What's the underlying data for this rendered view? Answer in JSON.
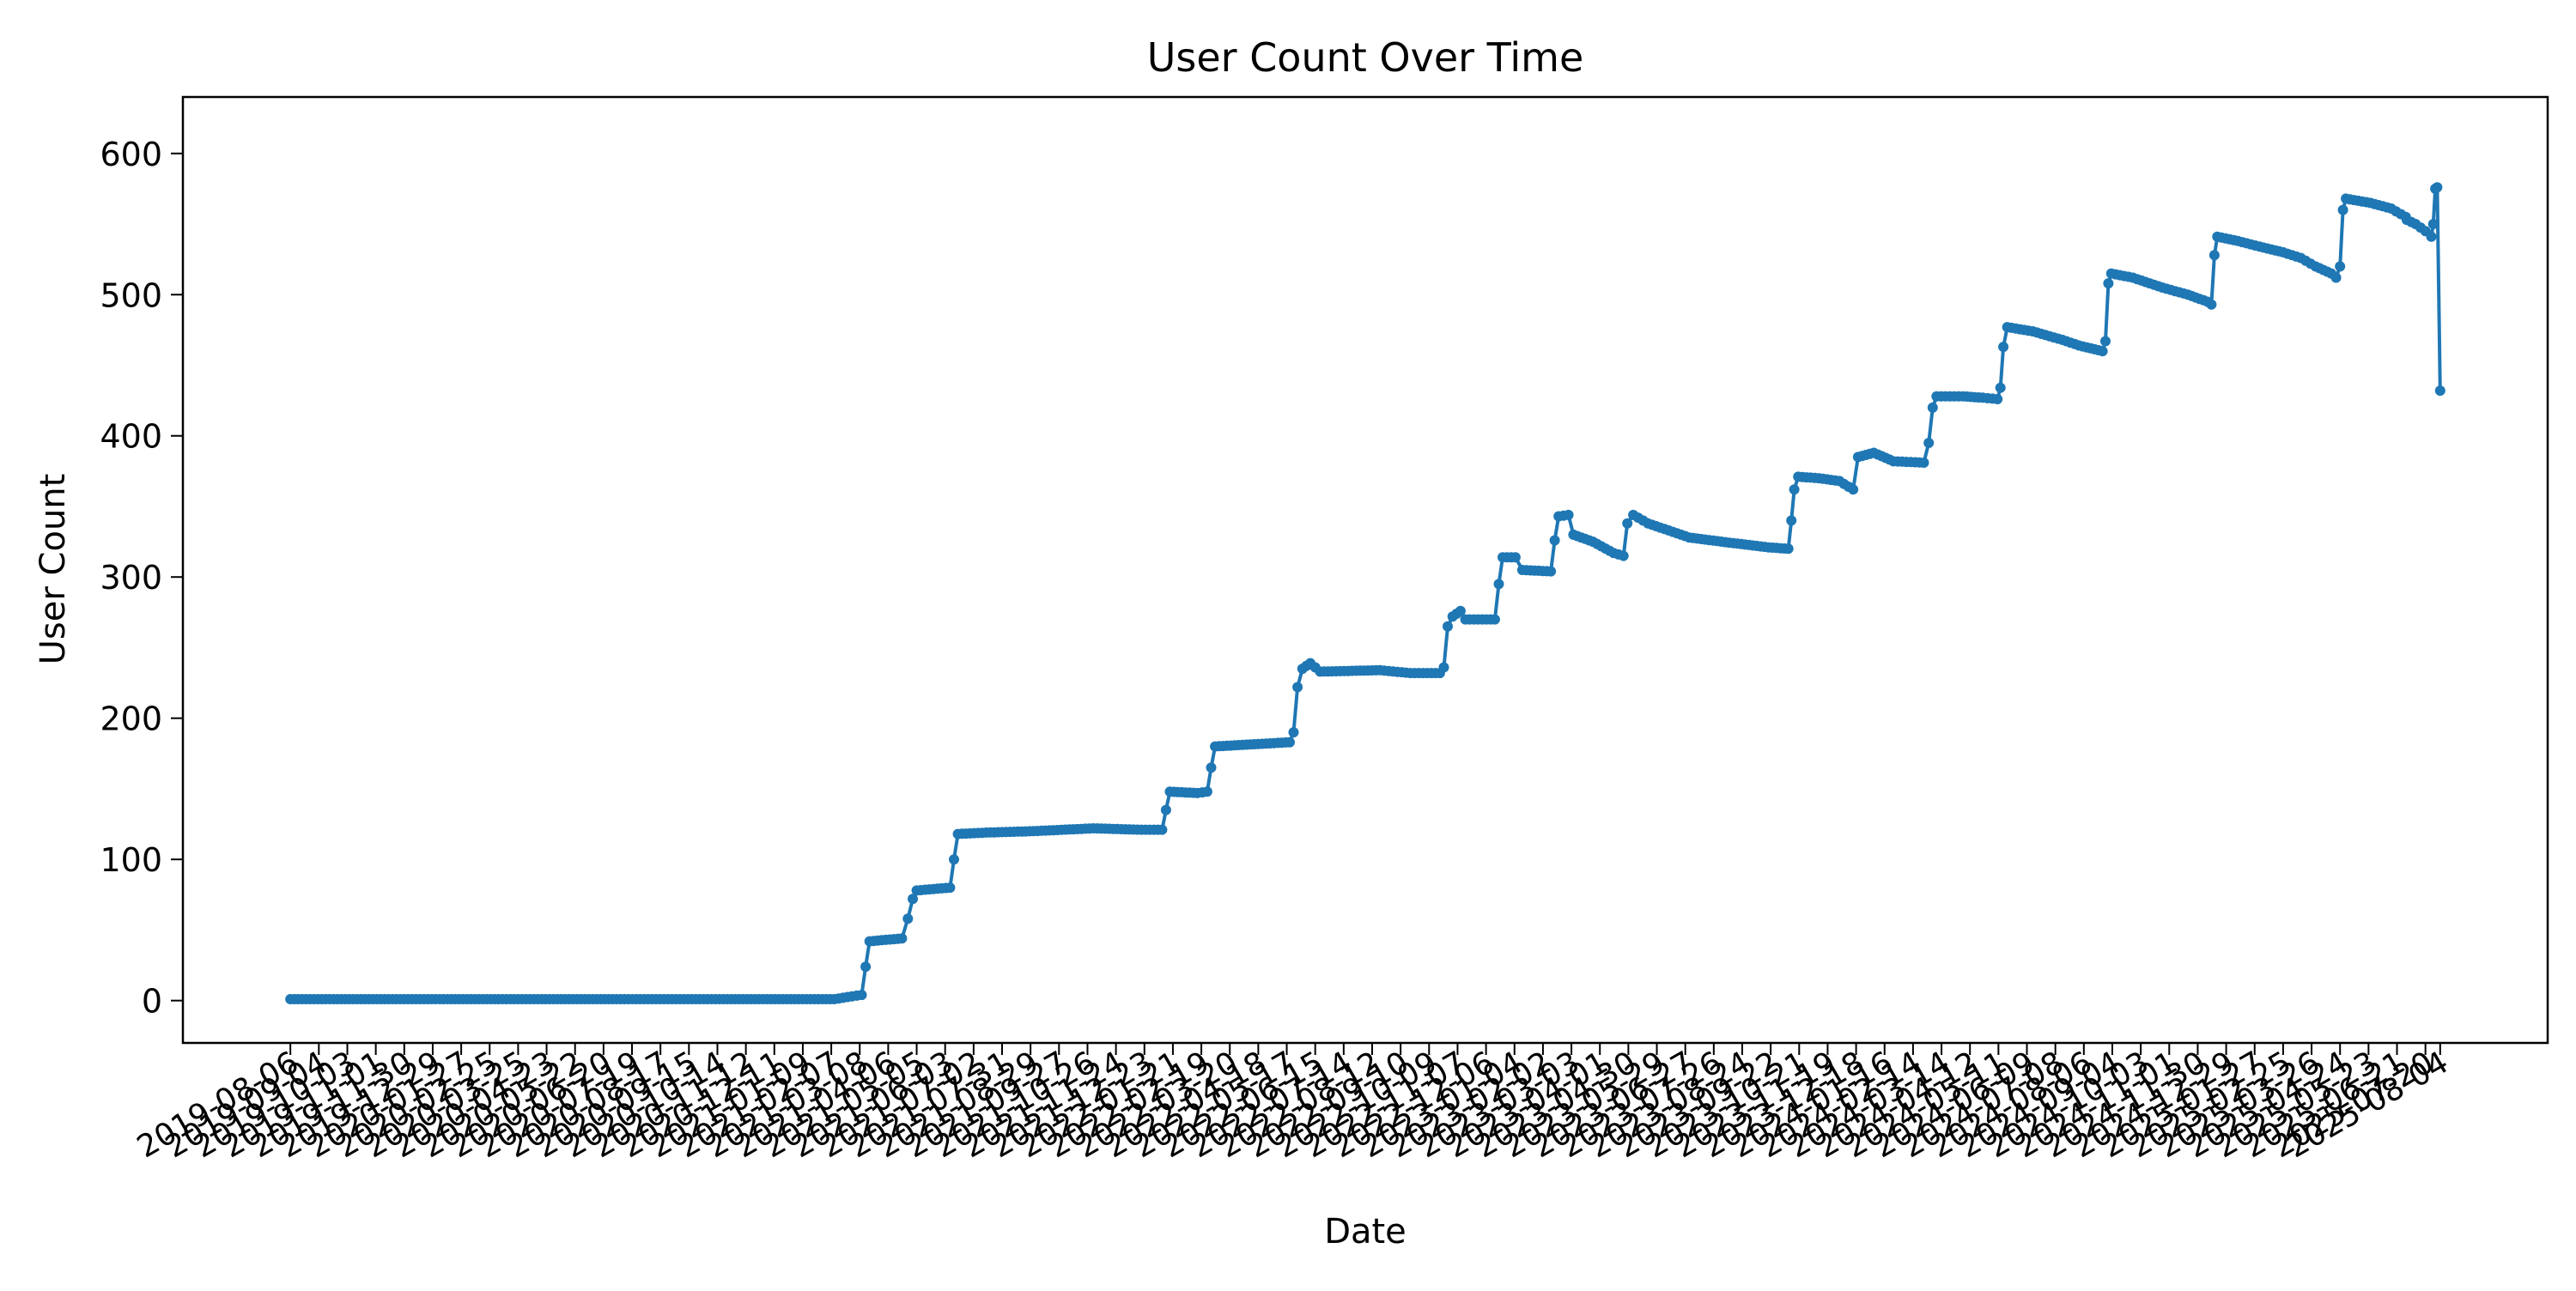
{
  "chart_data": {
    "type": "line",
    "title": "User Count Over Time",
    "xlabel": "Date",
    "ylabel": "User Count",
    "ylim": [
      -30,
      640
    ],
    "y_ticks": [
      0,
      100,
      200,
      300,
      400,
      500,
      600
    ],
    "x_tick_labels_note": "Dense overlapping date tick labels; first and last legible",
    "x_range": [
      "2019-08-06",
      "2025-08-04"
    ],
    "x_tick_labels": [
      "2019-08-06",
      "2019-09-04",
      "2019-10-03",
      "2019-11-01",
      "2019-11-30",
      "2019-12-29",
      "2020-01-27",
      "2020-02-25",
      "2020-03-25",
      "2020-04-23",
      "2020-05-22",
      "2020-06-20",
      "2020-07-19",
      "2020-08-17",
      "2020-09-15",
      "2020-10-14",
      "2020-11-12",
      "2020-12-11",
      "2021-01-09",
      "2021-02-07",
      "2021-03-08",
      "2021-04-06",
      "2021-05-05",
      "2021-06-03",
      "2021-07-02",
      "2021-07-31",
      "2021-08-29",
      "2021-09-27",
      "2021-10-26",
      "2021-11-24",
      "2021-12-23",
      "2022-01-21",
      "2022-02-19",
      "2022-03-20",
      "2022-04-18",
      "2022-05-17",
      "2022-06-15",
      "2022-07-14",
      "2022-08-12",
      "2022-09-10",
      "2022-10-09",
      "2022-11-07",
      "2022-12-06",
      "2023-01-04",
      "2023-02-02",
      "2023-03-03",
      "2023-04-01",
      "2023-04-30",
      "2023-05-29",
      "2023-06-27",
      "2023-07-26",
      "2023-08-24",
      "2023-09-22",
      "2023-10-21",
      "2023-11-19",
      "2023-12-18",
      "2024-01-16",
      "2024-02-14",
      "2024-03-14",
      "2024-04-12",
      "2024-05-11",
      "2024-06-09",
      "2024-07-08",
      "2024-08-06",
      "2024-09-04",
      "2024-10-03",
      "2024-11-01",
      "2024-11-30",
      "2024-12-29",
      "2025-01-27",
      "2025-02-25",
      "2025-03-26",
      "2025-04-24",
      "2025-05-23",
      "2025-06-21",
      "2025-07-20",
      "2025-08-04"
    ],
    "series": [
      {
        "color": "#1f77b4",
        "points": [
          [
            "2019-08-06",
            1
          ],
          [
            "2020-06-01",
            1
          ],
          [
            "2021-02-10",
            1
          ],
          [
            "2021-02-28",
            3
          ],
          [
            "2021-03-10",
            4
          ],
          [
            "2021-03-14",
            24
          ],
          [
            "2021-03-18",
            42
          ],
          [
            "2021-04-20",
            44
          ],
          [
            "2021-04-26",
            58
          ],
          [
            "2021-05-01",
            72
          ],
          [
            "2021-05-05",
            78
          ],
          [
            "2021-06-08",
            80
          ],
          [
            "2021-06-12",
            100
          ],
          [
            "2021-06-16",
            118
          ],
          [
            "2021-07-15",
            119
          ],
          [
            "2021-09-01",
            120
          ],
          [
            "2021-11-01",
            122
          ],
          [
            "2021-12-20",
            121
          ],
          [
            "2022-01-10",
            121
          ],
          [
            "2022-01-14",
            135
          ],
          [
            "2022-01-18",
            148
          ],
          [
            "2022-02-15",
            147
          ],
          [
            "2022-02-25",
            148
          ],
          [
            "2022-03-01",
            165
          ],
          [
            "2022-03-05",
            180
          ],
          [
            "2022-05-20",
            183
          ],
          [
            "2022-05-24",
            190
          ],
          [
            "2022-05-28",
            222
          ],
          [
            "2022-06-02",
            235
          ],
          [
            "2022-06-10",
            239
          ],
          [
            "2022-06-20",
            233
          ],
          [
            "2022-08-20",
            234
          ],
          [
            "2022-09-20",
            232
          ],
          [
            "2022-10-20",
            232
          ],
          [
            "2022-10-24",
            236
          ],
          [
            "2022-10-28",
            265
          ],
          [
            "2022-11-02",
            272
          ],
          [
            "2022-11-10",
            276
          ],
          [
            "2022-11-15",
            270
          ],
          [
            "2022-12-15",
            270
          ],
          [
            "2022-12-19",
            295
          ],
          [
            "2022-12-23",
            314
          ],
          [
            "2023-01-05",
            314
          ],
          [
            "2023-01-12",
            305
          ],
          [
            "2023-02-10",
            304
          ],
          [
            "2023-02-14",
            326
          ],
          [
            "2023-02-18",
            343
          ],
          [
            "2023-02-28",
            344
          ],
          [
            "2023-03-05",
            330
          ],
          [
            "2023-03-25",
            325
          ],
          [
            "2023-04-15",
            317
          ],
          [
            "2023-04-25",
            315
          ],
          [
            "2023-04-29",
            338
          ],
          [
            "2023-05-05",
            344
          ],
          [
            "2023-05-20",
            338
          ],
          [
            "2023-07-01",
            328
          ],
          [
            "2023-08-15",
            324
          ],
          [
            "2023-09-20",
            321
          ],
          [
            "2023-10-10",
            320
          ],
          [
            "2023-10-13",
            340
          ],
          [
            "2023-10-16",
            362
          ],
          [
            "2023-10-20",
            371
          ],
          [
            "2023-11-10",
            370
          ],
          [
            "2023-12-01",
            368
          ],
          [
            "2023-12-15",
            362
          ],
          [
            "2023-12-20",
            385
          ],
          [
            "2024-01-05",
            388
          ],
          [
            "2024-01-25",
            382
          ],
          [
            "2024-02-25",
            381
          ],
          [
            "2024-03-01",
            395
          ],
          [
            "2024-03-05",
            420
          ],
          [
            "2024-03-09",
            428
          ],
          [
            "2024-04-05",
            428
          ],
          [
            "2024-04-25",
            427
          ],
          [
            "2024-05-10",
            426
          ],
          [
            "2024-05-13",
            434
          ],
          [
            "2024-05-16",
            463
          ],
          [
            "2024-05-20",
            477
          ],
          [
            "2024-06-15",
            474
          ],
          [
            "2024-07-15",
            468
          ],
          [
            "2024-08-01",
            464
          ],
          [
            "2024-08-25",
            460
          ],
          [
            "2024-08-28",
            467
          ],
          [
            "2024-08-31",
            508
          ],
          [
            "2024-09-03",
            515
          ],
          [
            "2024-09-25",
            512
          ],
          [
            "2024-10-25",
            505
          ],
          [
            "2024-11-20",
            500
          ],
          [
            "2024-12-10",
            495
          ],
          [
            "2024-12-14",
            493
          ],
          [
            "2024-12-17",
            528
          ],
          [
            "2024-12-20",
            541
          ],
          [
            "2025-01-10",
            538
          ],
          [
            "2025-02-01",
            534
          ],
          [
            "2025-02-25",
            530
          ],
          [
            "2025-03-15",
            526
          ],
          [
            "2025-03-30",
            520
          ],
          [
            "2025-04-15",
            515
          ],
          [
            "2025-04-20",
            512
          ],
          [
            "2025-04-24",
            520
          ],
          [
            "2025-04-27",
            560
          ],
          [
            "2025-04-30",
            568
          ],
          [
            "2025-05-25",
            565
          ],
          [
            "2025-06-15",
            561
          ],
          [
            "2025-06-30",
            555
          ],
          [
            "2025-07-01",
            553
          ],
          [
            "2025-07-10",
            550
          ],
          [
            "2025-07-20",
            545
          ],
          [
            "2025-07-26",
            541
          ],
          [
            "2025-07-28",
            550
          ],
          [
            "2025-07-30",
            575
          ],
          [
            "2025-08-01",
            576
          ],
          [
            "2025-08-04",
            432
          ]
        ]
      }
    ]
  }
}
